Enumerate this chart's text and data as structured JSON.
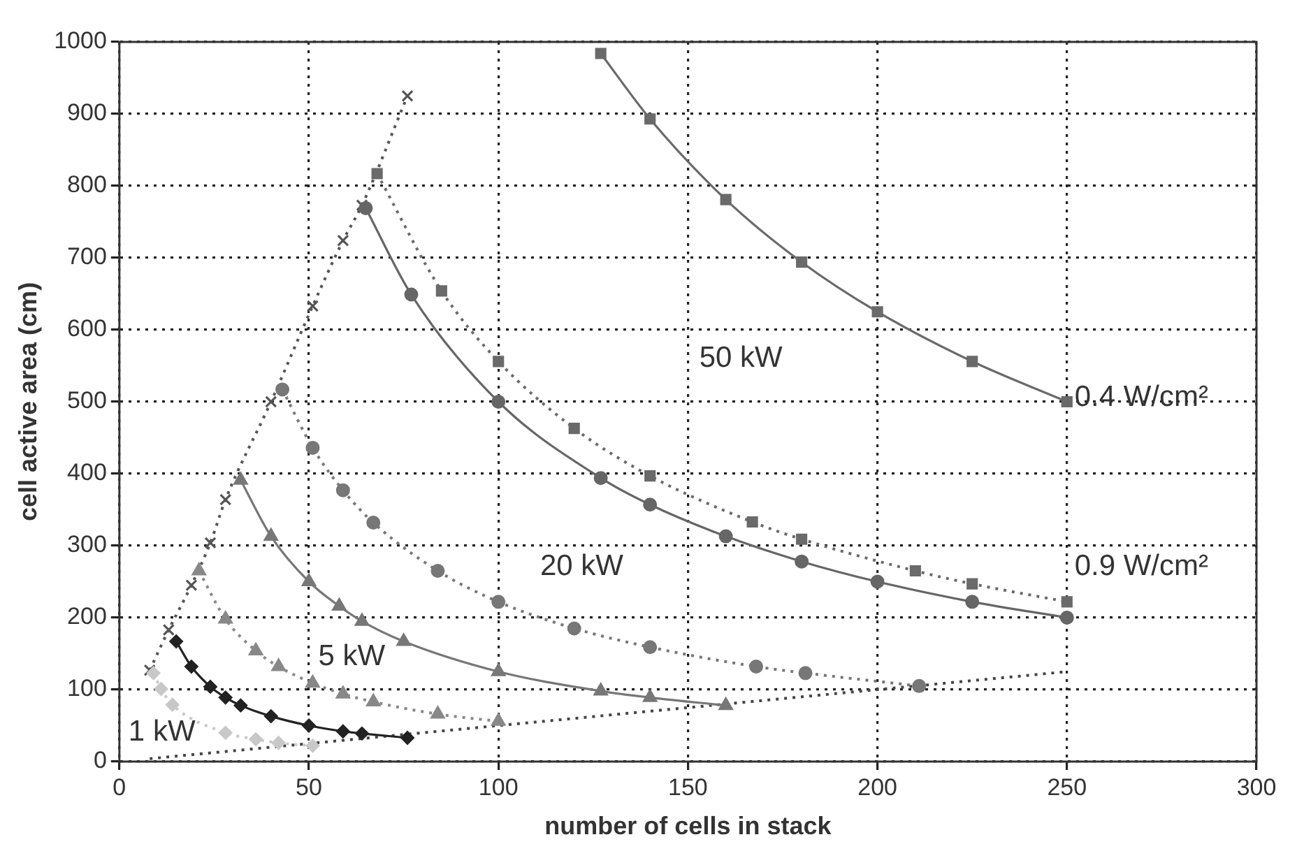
{
  "chart_data": {
    "type": "line",
    "xlabel": "number of cells in stack",
    "ylabel": "cell active area (cm)",
    "xlim": [
      0,
      300
    ],
    "xticks": [
      0,
      50,
      100,
      150,
      200,
      250,
      300
    ],
    "ylim": [
      0,
      1000
    ],
    "yticks": [
      0,
      100,
      200,
      300,
      400,
      500,
      600,
      700,
      800,
      900,
      1000
    ],
    "grid": true,
    "legend": false,
    "series": [
      {
        "color": "#6a6a6a",
        "marker": "square",
        "line_style": "solid",
        "x": [
          127,
          140,
          160,
          180,
          200,
          225,
          250
        ],
        "values": [
          984,
          893,
          781,
          694,
          625,
          556,
          500
        ]
      },
      {
        "color": "#6a6a6a",
        "marker": "square",
        "line_style": "dotted",
        "x": [
          68,
          85,
          100,
          120,
          140,
          167,
          180,
          210,
          225,
          250
        ],
        "values": [
          817,
          654,
          556,
          463,
          397,
          333,
          309,
          265,
          247,
          222
        ]
      },
      {
        "color": "#666666",
        "marker": "circle",
        "line_style": "solid",
        "x": [
          65,
          77,
          100,
          127,
          140,
          160,
          180,
          200,
          225,
          250
        ],
        "values": [
          769,
          649,
          500,
          394,
          357,
          313,
          278,
          250,
          222,
          200
        ]
      },
      {
        "color": "#777777",
        "marker": "circle",
        "line_style": "dotted",
        "x": [
          43,
          51,
          59,
          67,
          84,
          100,
          120,
          140,
          168,
          181,
          211
        ],
        "values": [
          517,
          436,
          377,
          332,
          265,
          222,
          185,
          159,
          132,
          123,
          105
        ]
      },
      {
        "color": "#777777",
        "marker": "triangle",
        "line_style": "solid",
        "x": [
          32,
          40,
          50,
          58,
          64,
          75,
          100,
          127,
          140,
          160
        ],
        "values": [
          391,
          313,
          250,
          216,
          195,
          167,
          125,
          98,
          89,
          78
        ]
      },
      {
        "color": "#888888",
        "marker": "triangle",
        "line_style": "dotted",
        "x": [
          21,
          28,
          36,
          42,
          51,
          59,
          67,
          84,
          100
        ],
        "values": [
          265,
          198,
          154,
          132,
          109,
          94,
          83,
          66,
          56
        ]
      },
      {
        "color": "#222222",
        "marker": "diamond",
        "line_style": "solid",
        "x": [
          15,
          19,
          24,
          28,
          32,
          40,
          50,
          59,
          64,
          76
        ],
        "values": [
          167,
          132,
          104,
          89,
          78,
          63,
          50,
          42,
          39,
          33
        ]
      },
      {
        "color": "#c8c8c8",
        "marker": "diamond",
        "line_style": "dotted",
        "x": [
          9,
          11,
          14,
          28,
          36,
          42,
          51
        ],
        "values": [
          123,
          101,
          79,
          40,
          31,
          26,
          22
        ]
      },
      {
        "color": "#555555",
        "marker": "cross",
        "line_style": "dotted",
        "x": [
          8,
          13,
          19,
          24,
          28,
          40,
          51,
          59,
          64,
          76
        ],
        "values": [
          127,
          183,
          245,
          304,
          364,
          500,
          633,
          724,
          773,
          925
        ]
      },
      {
        "color": "#444444",
        "marker": "none",
        "line_style": "dotted",
        "x": [
          8,
          250
        ],
        "values": [
          4,
          125
        ]
      }
    ],
    "annotations": [
      "50 kW",
      "0.4 W/cm²",
      "20 kW",
      "0.9 W/cm²",
      "5 kW",
      "1 kW"
    ]
  }
}
